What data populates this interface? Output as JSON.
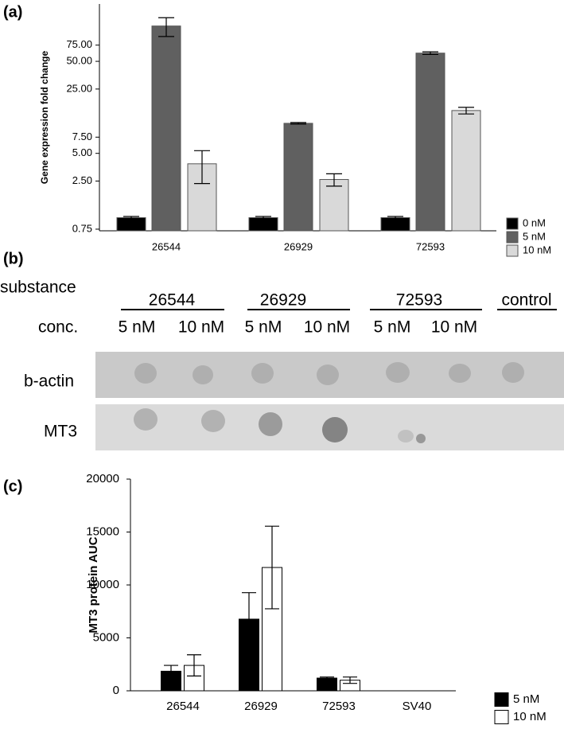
{
  "panels": [
    "(a)",
    "(b)",
    "(c)"
  ],
  "chart_data": [
    {
      "type": "bar",
      "ylabel": "Gene expression fold change",
      "log_scale": true,
      "categories": [
        "26544",
        "26929",
        "72593"
      ],
      "series": [
        {
          "name": "0 nM",
          "color": "#000000",
          "values": [
            1,
            1,
            1
          ],
          "errors": [
            0.03,
            0.03,
            0.03
          ]
        },
        {
          "name": "5 nM",
          "color": "#606060",
          "values": [
            121,
            10.6,
            61.4
          ],
          "errors": [
            28,
            0.2,
            2
          ]
        },
        {
          "name": "10 nM",
          "color": "#d9d9d9",
          "values": [
            3.85,
            2.6,
            14.6
          ],
          "errors": [
            1.5,
            0.4,
            1.2
          ]
        }
      ],
      "ylim": [
        0.72,
        210
      ],
      "yticks": [
        0.75,
        {
          "value": 2.5,
          "label": "2.50"
        },
        {
          "value": 5,
          "label": "5.00"
        },
        {
          "value": 7.5,
          "label": "7.50"
        },
        {
          "value": 25,
          "label": "25.00"
        },
        {
          "value": 50,
          "label": "50.00"
        },
        {
          "value": 75,
          "label": "75.00"
        }
      ]
    },
    {
      "type": "bar",
      "ylabel": "MT3 protein AUC",
      "log_scale": false,
      "edgecolor": "#000000",
      "categories": [
        "26544",
        "26929",
        "72593",
        "SV40"
      ],
      "series": [
        {
          "name": "5 nM",
          "color": "#000000",
          "values": [
            1850,
            6770,
            1200,
            0
          ],
          "errors": [
            550,
            2500,
            100,
            0
          ]
        },
        {
          "name": "10 nM",
          "color": "#ffffff",
          "values": [
            2400,
            11650,
            1000,
            0
          ],
          "errors": [
            1000,
            3900,
            300,
            0
          ]
        }
      ],
      "ylim": [
        0,
        20000
      ],
      "yticks": [
        0,
        5000,
        10000,
        15000,
        20000
      ]
    }
  ],
  "blot": {
    "substance_label": "substance",
    "conc_label": "conc.",
    "groups": [
      "26544",
      "26929",
      "72593",
      "control"
    ],
    "concentrations": [
      "5 nM",
      "10 nM",
      "5 nM",
      "10 nM",
      "5 nM",
      "10 nM"
    ],
    "rows": [
      "b-actin",
      "MT3"
    ]
  }
}
